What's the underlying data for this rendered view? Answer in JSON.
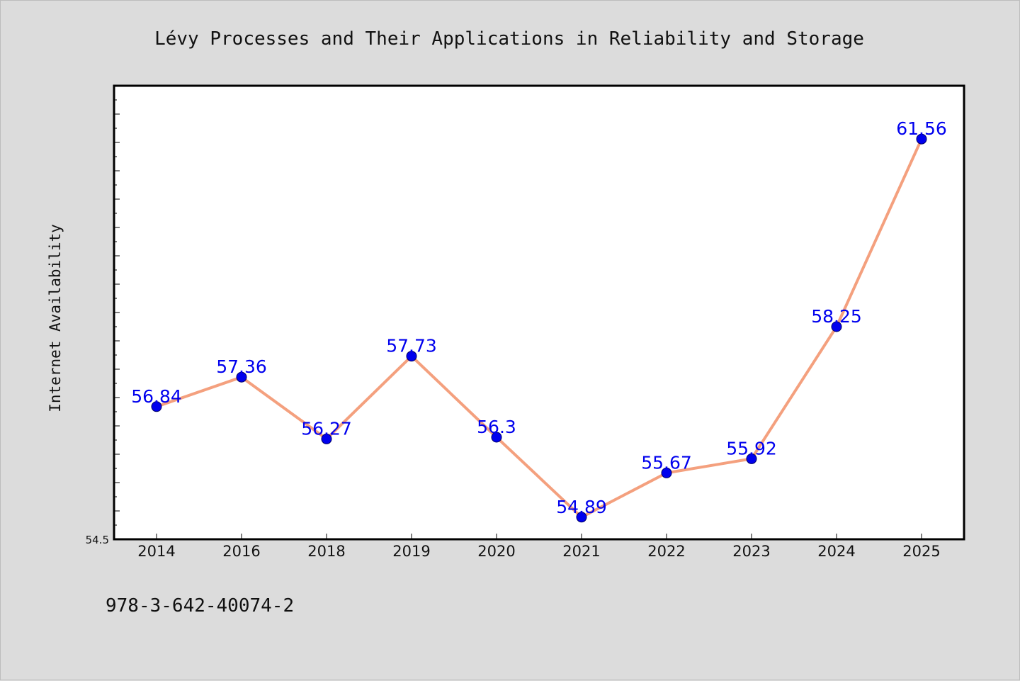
{
  "chart_data": {
    "type": "line",
    "title": "Lévy Processes and Their Applications in Reliability and Storage",
    "xlabel": "",
    "ylabel": "Internet Availability",
    "categories": [
      "2014",
      "2016",
      "2018",
      "2019",
      "2020",
      "2021",
      "2022",
      "2023",
      "2024",
      "2025"
    ],
    "series": [
      {
        "values": [
          56.84,
          57.36,
          56.27,
          57.73,
          56.3,
          54.89,
          55.67,
          55.92,
          58.25,
          61.56
        ],
        "labels": [
          "56.84",
          "57.36",
          "56.27",
          "57.73",
          "56.3",
          "54.89",
          "55.67",
          "55.92",
          "58.25",
          "61.56"
        ]
      }
    ],
    "ylim": [
      54.5,
      62.5
    ],
    "y_tick_labels": [
      "54.5"
    ],
    "grid": false,
    "legend": "none",
    "colors": {
      "line": "#f4a07e",
      "marker": "#0000ee",
      "marker_edge": "#000066",
      "data_label": "#0000ee",
      "plot_background": "#ffffff",
      "figure_background": "#dcdcdc"
    }
  },
  "footer": {
    "text": "978-3-642-40074-2"
  }
}
